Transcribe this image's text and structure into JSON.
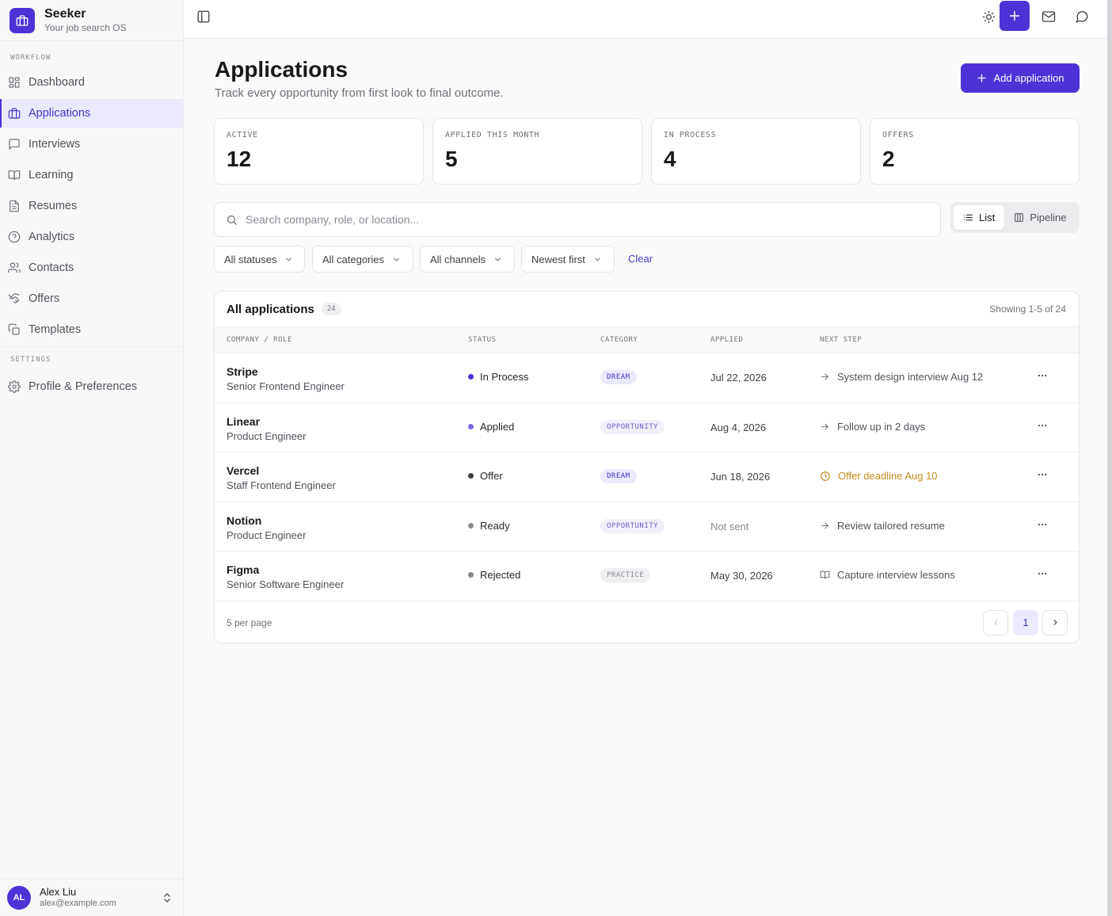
{
  "brand": {
    "name": "Seeker",
    "tagline": "Your job search OS"
  },
  "sidebar": {
    "workflow_label": "WORKFLOW",
    "items": [
      {
        "label": "Dashboard",
        "icon": "dashboard-icon"
      },
      {
        "label": "Applications",
        "icon": "briefcase-icon",
        "active": true
      },
      {
        "label": "Interviews",
        "icon": "message-icon"
      },
      {
        "label": "Learning",
        "icon": "book-icon"
      },
      {
        "label": "Resumes",
        "icon": "file-icon"
      },
      {
        "label": "Analytics",
        "icon": "analytics-icon"
      },
      {
        "label": "Contacts",
        "icon": "users-icon"
      },
      {
        "label": "Offers",
        "icon": "handshake-icon"
      },
      {
        "label": "Templates",
        "icon": "copy-icon"
      }
    ],
    "settings_label": "SETTINGS",
    "settings_items": [
      {
        "label": "Profile & Preferences",
        "icon": "gear-icon"
      }
    ]
  },
  "user": {
    "initials": "AL",
    "name": "Alex Liu",
    "email": "alex@example.com"
  },
  "header": {
    "title": "Applications",
    "subtitle": "Track every opportunity from first look to final outcome.",
    "add_label": "Add application"
  },
  "stats": [
    {
      "label": "ACTIVE",
      "value": "12"
    },
    {
      "label": "APPLIED THIS MONTH",
      "value": "5"
    },
    {
      "label": "IN PROCESS",
      "value": "4"
    },
    {
      "label": "OFFERS",
      "value": "2"
    }
  ],
  "search": {
    "placeholder": "Search company, role, or location..."
  },
  "view_toggle": {
    "list": "List",
    "pipeline": "Pipeline",
    "selected": "List"
  },
  "filters": {
    "status": "All statuses",
    "category": "All categories",
    "channel": "All channels",
    "sort": "Newest first",
    "clear": "Clear"
  },
  "table": {
    "title": "All applications",
    "count": "24",
    "showing": "Showing 1-5 of 24",
    "columns": [
      "COMPANY / ROLE",
      "STATUS",
      "CATEGORY",
      "APPLIED",
      "NEXT STEP"
    ],
    "rows": [
      {
        "company": "Stripe",
        "role": "Senior Frontend Engineer",
        "status": "In Process",
        "category": "DREAM",
        "applied": "Jul 22, 2026",
        "next_step": "System design interview Aug 12"
      },
      {
        "company": "Linear",
        "role": "Product Engineer",
        "status": "Applied",
        "category": "OPPORTUNITY",
        "applied": "Aug 4, 2026",
        "next_step": "Follow up in 2 days"
      },
      {
        "company": "Vercel",
        "role": "Staff Frontend Engineer",
        "status": "Offer",
        "category": "DREAM",
        "applied": "Jun 18, 2026",
        "next_step": "Offer deadline Aug 10"
      },
      {
        "company": "Notion",
        "role": "Product Engineer",
        "status": "Ready",
        "category": "OPPORTUNITY",
        "applied": "Not sent",
        "next_step": "Review tailored resume"
      },
      {
        "company": "Figma",
        "role": "Senior Software Engineer",
        "status": "Rejected",
        "category": "PRACTICE",
        "applied": "May 30, 2026",
        "next_step": "Capture interview lessons"
      }
    ],
    "per_page": "5 per page",
    "current_page": "1"
  },
  "colors": {
    "accent": "#4f32d6",
    "status_in_process": "#4f32d6",
    "status_applied": "#7c6be0",
    "status_offer": "#3f3f46",
    "status_ready": "#8a8a93",
    "status_rejected": "#8a8a93",
    "deadline_warning": "#c48a1c"
  }
}
